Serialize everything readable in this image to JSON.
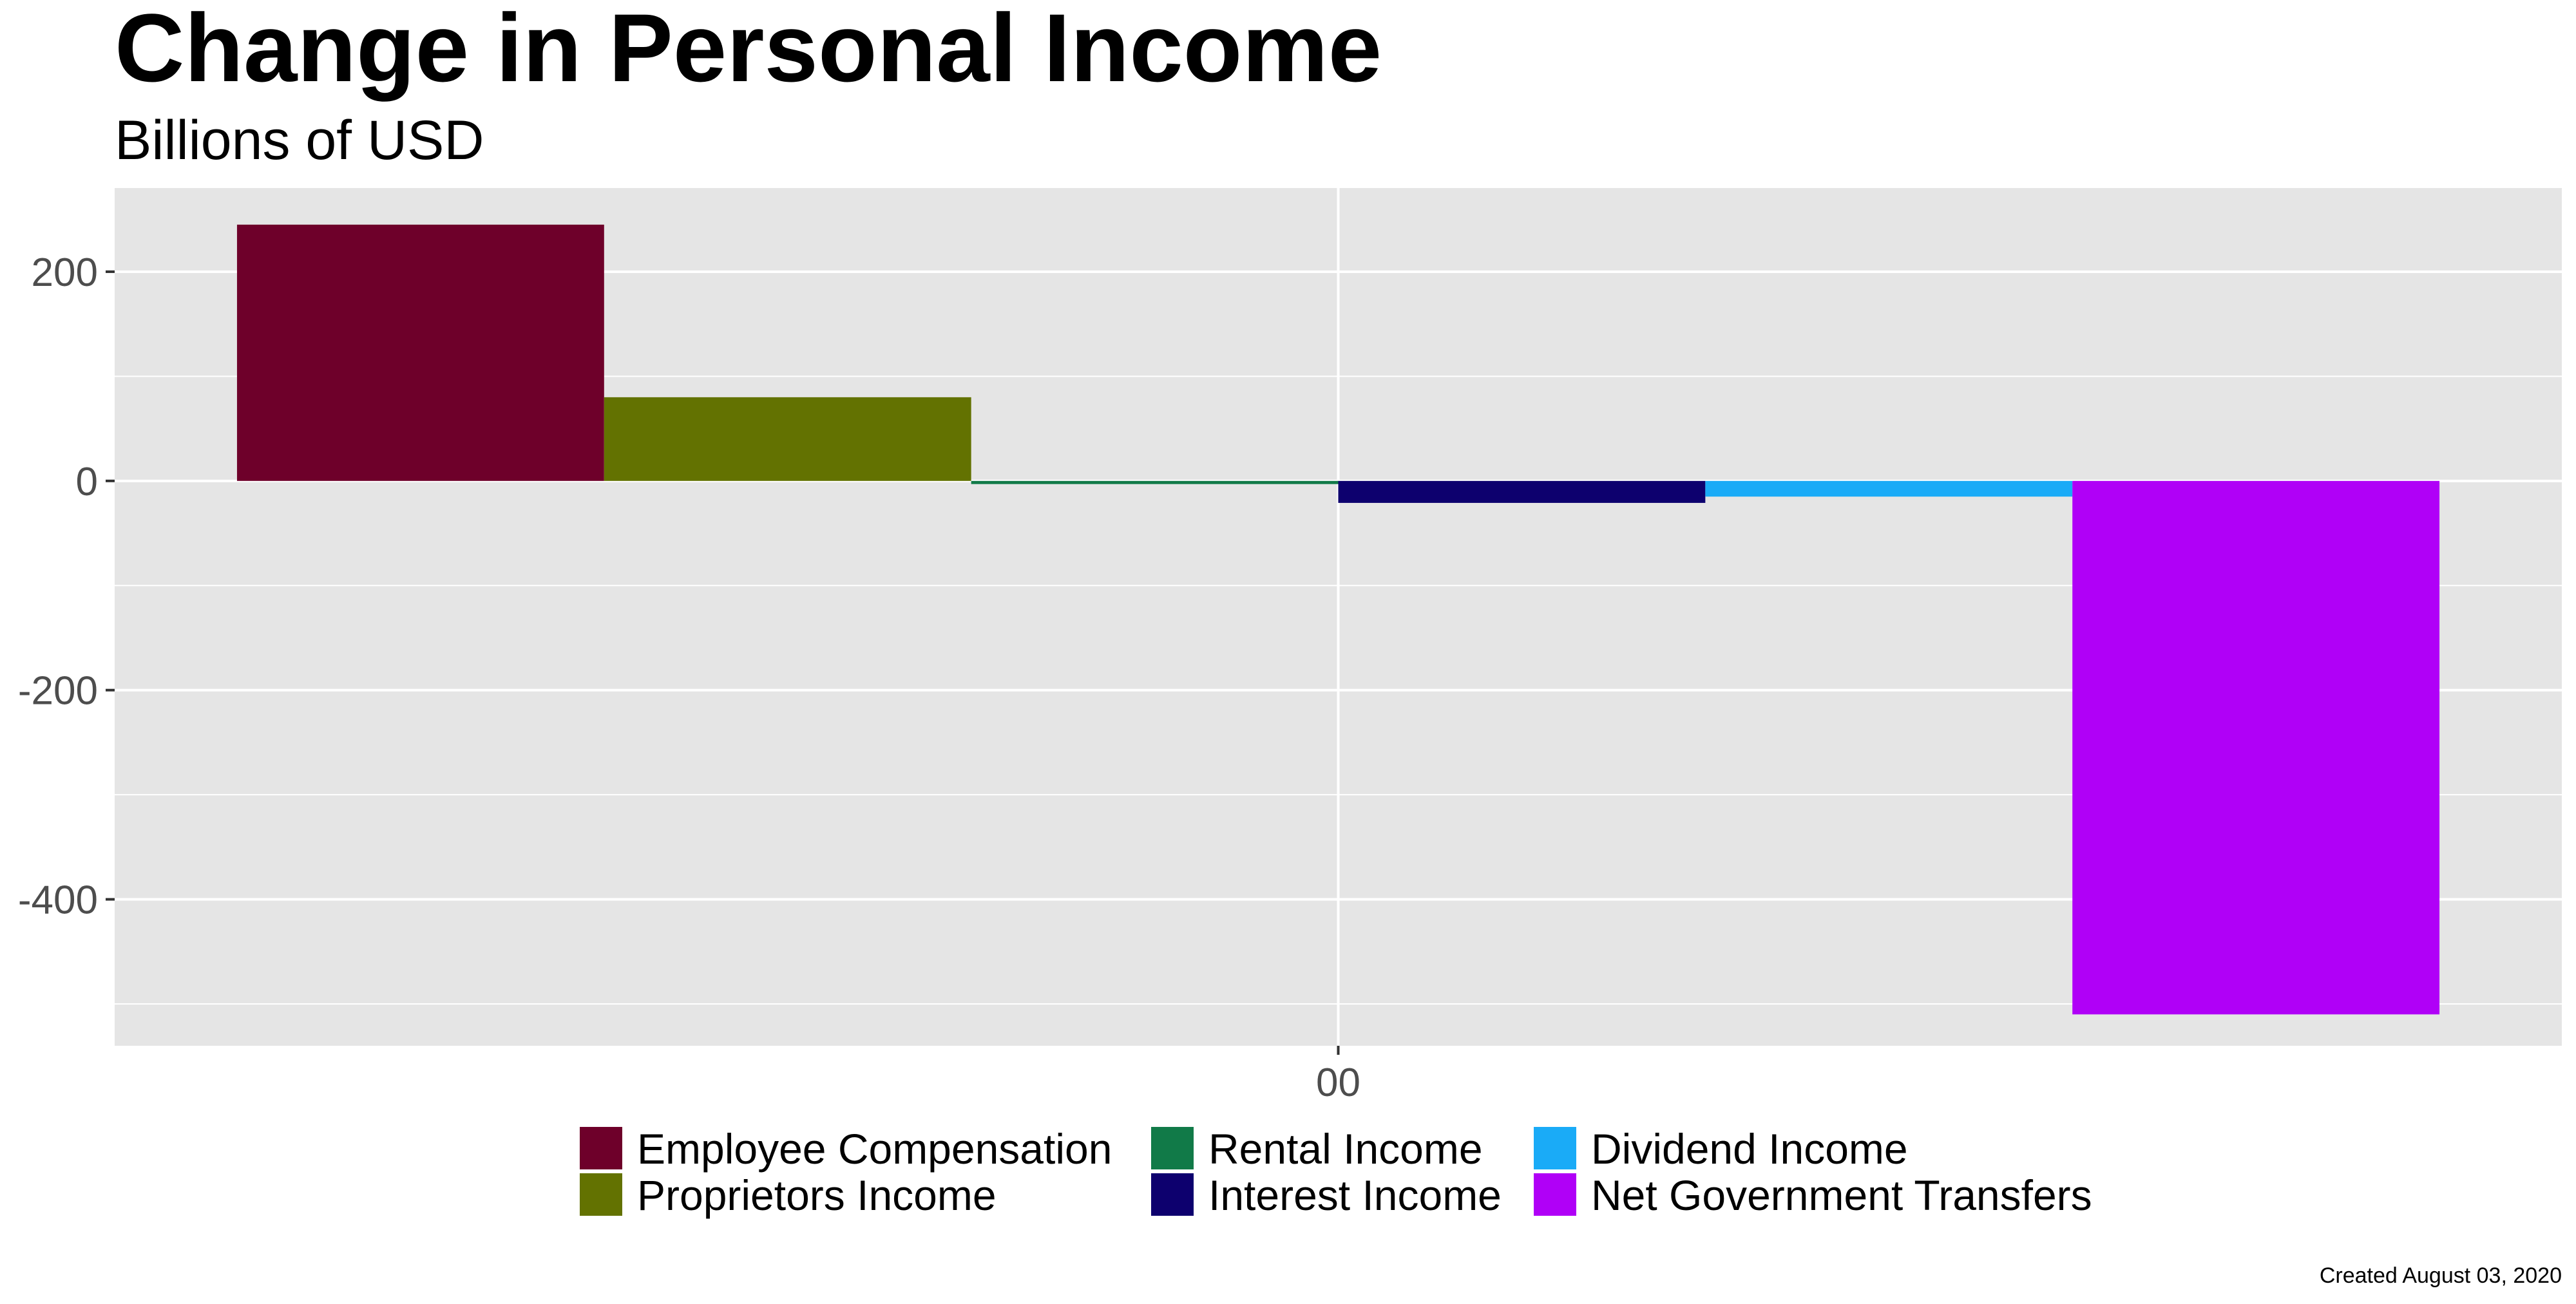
{
  "chart_data": {
    "type": "bar",
    "title": "Change in Personal Income",
    "subtitle": "Billions of USD",
    "x_tick_labels": [
      "00"
    ],
    "categories": [
      "Employee Compensation",
      "Proprietors Income",
      "Rental Income",
      "Interest Income",
      "Dividend Income",
      "Net Government Transfers"
    ],
    "series": [
      {
        "name": "Employee Compensation",
        "value": 245,
        "color": "#6E002A"
      },
      {
        "name": "Proprietors Income",
        "value": 80,
        "color": "#637201"
      },
      {
        "name": "Rental Income",
        "value": -3,
        "color": "#117A48"
      },
      {
        "name": "Interest Income",
        "value": -21,
        "color": "#0D006E"
      },
      {
        "name": "Dividend Income",
        "value": -15,
        "color": "#1AABF7"
      },
      {
        "name": "Net Government Transfers",
        "value": -510,
        "color": "#B000F7"
      }
    ],
    "ylim": [
      -540,
      280
    ],
    "y_ticks": [
      200,
      0,
      -200,
      -400
    ],
    "grid": true,
    "legend_position": "bottom",
    "caption": "Created August 03, 2020"
  }
}
